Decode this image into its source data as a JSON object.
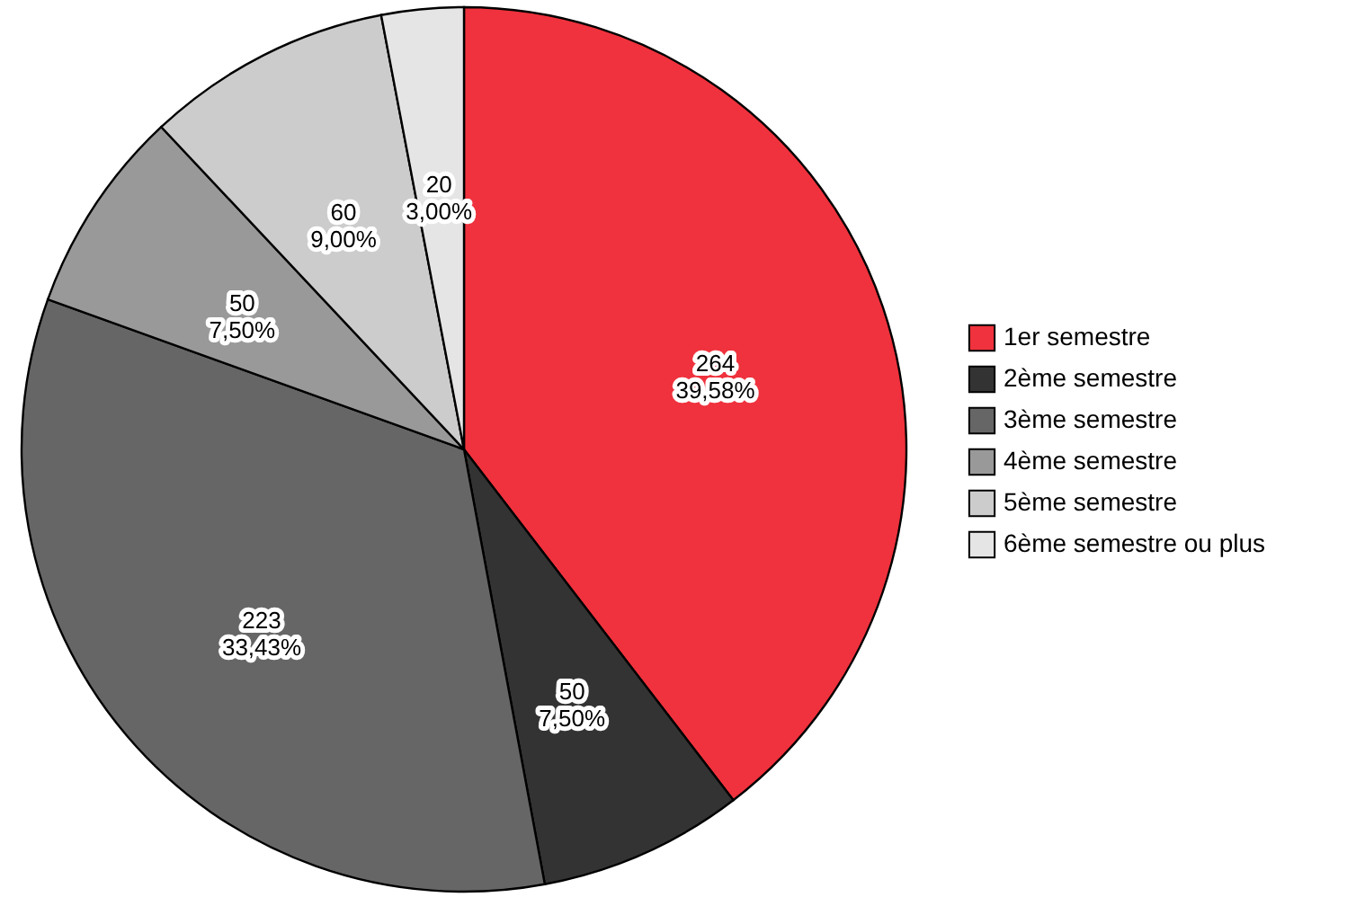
{
  "chart_data": {
    "type": "pie",
    "categories": [
      "1er semestre",
      "2ème semestre",
      "3ème semestre",
      "4ème semestre",
      "5ème semestre",
      "6ème semestre ou plus"
    ],
    "values": [
      264,
      50,
      223,
      50,
      60,
      20
    ],
    "colors": [
      "#ef323d",
      "#333333",
      "#666666",
      "#999999",
      "#cccccc",
      "#e5e5e5"
    ],
    "value_labels": [
      "264\n39,58%",
      "50\n7,50%",
      "223\n33,43%",
      "50\n7,50%",
      "60\n9,00%",
      "20\n3,00%"
    ],
    "legend": "right"
  }
}
